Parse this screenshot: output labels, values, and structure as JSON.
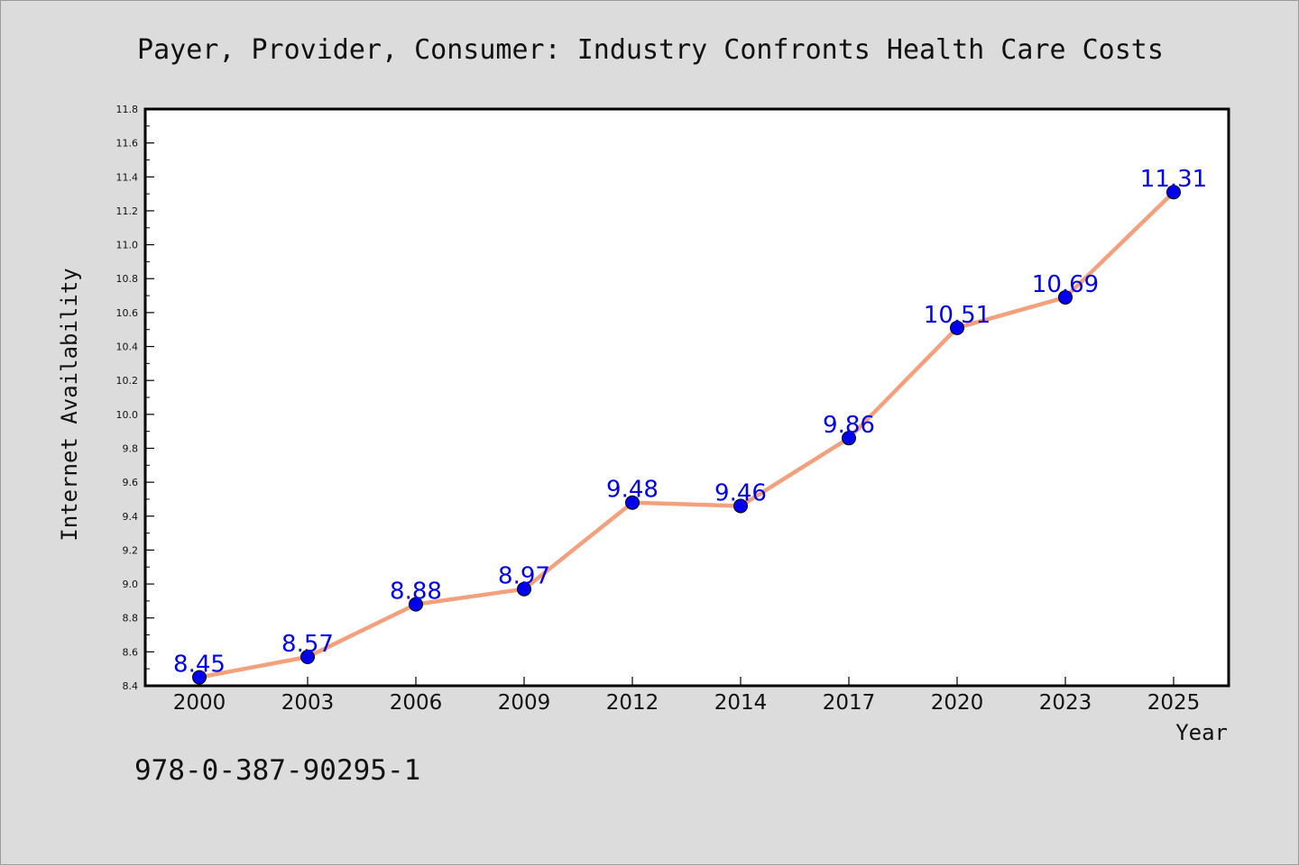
{
  "chart_data": {
    "type": "line",
    "title": "Payer, Provider, Consumer: Industry Confronts Health Care Costs",
    "xlabel": "Year",
    "ylabel": "Internet Availability",
    "categories": [
      "2000",
      "2003",
      "2006",
      "2009",
      "2012",
      "2014",
      "2017",
      "2020",
      "2023",
      "2025"
    ],
    "series": [
      {
        "values": [
          8.45,
          8.57,
          8.88,
          8.97,
          9.48,
          9.46,
          9.86,
          10.51,
          10.69,
          11.31
        ],
        "data_labels": [
          "8.45",
          "8.57",
          "8.88",
          "8.97",
          "9.48",
          "9.46",
          "9.86",
          "10.51",
          "10.69",
          "11.31"
        ]
      }
    ],
    "ylim": [
      8.4,
      11.8
    ],
    "yticks": [
      "8.4",
      "8.6",
      "8.8",
      "9.0",
      "9.2",
      "9.4",
      "9.6",
      "9.8",
      "10.0",
      "10.2",
      "10.4",
      "10.6",
      "10.8",
      "11.0",
      "11.2",
      "11.4",
      "11.6",
      "11.8"
    ],
    "grid": false,
    "legend": "none",
    "colors": {
      "line": "#f4a07c",
      "marker": "#0000ee",
      "data_label": "#0000ee",
      "background": "#dcdcdc",
      "plot_background": "#ffffff"
    }
  },
  "footer": {
    "isbn": "978-0-387-90295-1"
  }
}
